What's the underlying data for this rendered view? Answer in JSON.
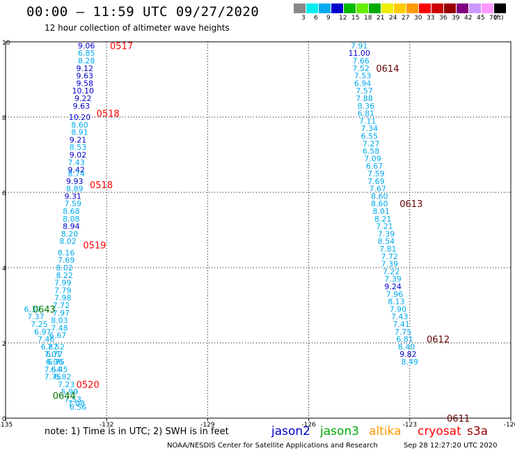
{
  "title": "00:00 – 11:59 UTC 09/27/2020",
  "subtitle": "12 hour collection of altimeter wave heights",
  "legend": {
    "unit": "(ft)",
    "colors": [
      "#888888",
      "#00eeee",
      "#00aaee",
      "#0000cc",
      "#00bb00",
      "#66ee00",
      "#00aa00",
      "#eeee00",
      "#ffcc00",
      "#ff9900",
      "#ff0000",
      "#cc0000",
      "#990000",
      "#800080",
      "#cc99ff",
      "#ff99ff",
      "#000000"
    ],
    "labels": [
      "3",
      "6",
      "9",
      "12",
      "15",
      "18",
      "21",
      "24",
      "27",
      "30",
      "33",
      "36",
      "39",
      "42",
      "45",
      "70"
    ]
  },
  "map": {
    "x_ticks": [
      "-135",
      "-132",
      "-129",
      "-126",
      "-123",
      "-120"
    ],
    "y_ticks": [
      "0",
      "2",
      "4",
      "6",
      "8",
      "10"
    ],
    "grid": "dotted",
    "pass_labels": [
      {
        "text": "0517",
        "color": "#ff0000",
        "lon": -131.9,
        "lat": 9.9
      },
      {
        "text": "0518",
        "color": "#ff0000",
        "lon": -132.3,
        "lat": 8.1
      },
      {
        "text": "0518",
        "color": "#ff0000",
        "lon": -132.5,
        "lat": 6.2
      },
      {
        "text": "0519",
        "color": "#ff0000",
        "lon": -132.7,
        "lat": 4.6
      },
      {
        "text": "0643",
        "color": "#007700",
        "lon": -134.2,
        "lat": 2.9
      },
      {
        "text": "0520",
        "color": "#ff0000",
        "lon": -132.9,
        "lat": 0.9
      },
      {
        "text": "0644",
        "color": "#007700",
        "lon": -133.6,
        "lat": 0.6
      },
      {
        "text": "0614",
        "color": "#660000",
        "lon": -124.0,
        "lat": 9.3
      },
      {
        "text": "0613",
        "color": "#660000",
        "lon": -123.3,
        "lat": 5.7
      },
      {
        "text": "0612",
        "color": "#660000",
        "lon": -122.5,
        "lat": 2.1
      },
      {
        "text": "0611",
        "color": "#660000",
        "lon": -121.9,
        "lat": 0.0
      }
    ],
    "tracks": [
      {
        "satellite": "jason3",
        "points": [
          {
            "lon": -134.2,
            "lat": 2.9,
            "v": "6.37",
            "c": "#00aaee"
          },
          {
            "lon": -134.1,
            "lat": 2.7,
            "v": "7.37",
            "c": "#00aaee"
          },
          {
            "lon": -134.0,
            "lat": 2.5,
            "v": "7.25",
            "c": "#00aaee"
          },
          {
            "lon": -133.9,
            "lat": 2.3,
            "v": "6.97",
            "c": "#00aaee"
          },
          {
            "lon": -133.8,
            "lat": 2.1,
            "v": "7.46",
            "c": "#00aaee"
          },
          {
            "lon": -133.7,
            "lat": 1.9,
            "v": "6.87",
            "c": "#00aaee"
          },
          {
            "lon": -133.6,
            "lat": 1.7,
            "v": "7.01",
            "c": "#00aaee"
          },
          {
            "lon": -133.5,
            "lat": 1.5,
            "v": "6.75",
            "c": "#00aaee"
          },
          {
            "lon": -133.4,
            "lat": 1.3,
            "v": "6.45",
            "c": "#00aaee"
          },
          {
            "lon": -133.3,
            "lat": 1.1,
            "v": "6.82",
            "c": "#00aaee"
          },
          {
            "lon": -133.2,
            "lat": 0.9,
            "v": "7.23",
            "c": "#00aaee"
          },
          {
            "lon": -133.1,
            "lat": 0.7,
            "v": "5.99",
            "c": "#00aaee"
          },
          {
            "lon": -133.0,
            "lat": 0.5,
            "v": "7.53",
            "c": "#00aaee"
          },
          {
            "lon": -132.9,
            "lat": 0.4,
            "v": "7.08",
            "c": "#00aaee"
          },
          {
            "lon": -132.85,
            "lat": 0.3,
            "v": "6.56",
            "c": "#00aaee"
          }
        ]
      },
      {
        "satellite": "cryosat",
        "points": [
          {
            "lon": -132.6,
            "lat": 9.9,
            "v": "9.06",
            "c": "#0000cc"
          },
          {
            "lon": -132.6,
            "lat": 9.7,
            "v": "6.85",
            "c": "#00aaee"
          },
          {
            "lon": -132.6,
            "lat": 9.5,
            "v": "8.28",
            "c": "#00aaee"
          },
          {
            "lon": -132.65,
            "lat": 9.3,
            "v": "9.12",
            "c": "#0000cc"
          },
          {
            "lon": -132.65,
            "lat": 9.1,
            "v": "9.63",
            "c": "#0000cc"
          },
          {
            "lon": -132.65,
            "lat": 8.9,
            "v": "9.58",
            "c": "#0000cc"
          },
          {
            "lon": -132.7,
            "lat": 8.7,
            "v": "10.10",
            "c": "#0000cc"
          },
          {
            "lon": -132.7,
            "lat": 8.5,
            "v": "9.22",
            "c": "#0000cc"
          },
          {
            "lon": -132.75,
            "lat": 8.3,
            "v": "9.63",
            "c": "#0000cc"
          },
          {
            "lon": -132.8,
            "lat": 8.0,
            "v": "10.20",
            "c": "#0000cc"
          },
          {
            "lon": -132.8,
            "lat": 7.8,
            "v": "8.60",
            "c": "#00aaee"
          },
          {
            "lon": -132.8,
            "lat": 7.6,
            "v": "8.91",
            "c": "#00aaee"
          },
          {
            "lon": -132.85,
            "lat": 7.4,
            "v": "9.21",
            "c": "#0000cc"
          },
          {
            "lon": -132.85,
            "lat": 7.2,
            "v": "8.53",
            "c": "#00aaee"
          },
          {
            "lon": -132.85,
            "lat": 7.0,
            "v": "9.02",
            "c": "#0000cc"
          },
          {
            "lon": -132.9,
            "lat": 6.8,
            "v": "7.43",
            "c": "#00aaee"
          },
          {
            "lon": -132.9,
            "lat": 6.6,
            "v": "9.42",
            "c": "#0000cc"
          },
          {
            "lon": -132.9,
            "lat": 6.5,
            "v": "8.74",
            "c": "#00aaee"
          },
          {
            "lon": -132.95,
            "lat": 6.3,
            "v": "9.93",
            "c": "#0000cc"
          },
          {
            "lon": -132.95,
            "lat": 6.1,
            "v": "8.89",
            "c": "#00aaee"
          },
          {
            "lon": -133.0,
            "lat": 5.9,
            "v": "9.31",
            "c": "#0000cc"
          },
          {
            "lon": -133.0,
            "lat": 5.7,
            "v": "7.59",
            "c": "#00aaee"
          },
          {
            "lon": -133.05,
            "lat": 5.5,
            "v": "8.68",
            "c": "#00aaee"
          },
          {
            "lon": -133.05,
            "lat": 5.3,
            "v": "8.08",
            "c": "#00aaee"
          },
          {
            "lon": -133.05,
            "lat": 5.1,
            "v": "8.94",
            "c": "#0000cc"
          },
          {
            "lon": -133.1,
            "lat": 4.9,
            "v": "8.20",
            "c": "#00aaee"
          },
          {
            "lon": -133.15,
            "lat": 4.7,
            "v": "8.02",
            "c": "#00aaee"
          },
          {
            "lon": -133.2,
            "lat": 4.4,
            "v": "8.16",
            "c": "#00aaee"
          },
          {
            "lon": -133.2,
            "lat": 4.2,
            "v": "7.69",
            "c": "#00aaee"
          },
          {
            "lon": -133.25,
            "lat": 4.0,
            "v": "8.02",
            "c": "#00aaee"
          },
          {
            "lon": -133.25,
            "lat": 3.8,
            "v": "8.22",
            "c": "#00aaee"
          },
          {
            "lon": -133.3,
            "lat": 3.6,
            "v": "7.99",
            "c": "#00aaee"
          },
          {
            "lon": -133.3,
            "lat": 3.4,
            "v": "7.79",
            "c": "#00aaee"
          },
          {
            "lon": -133.3,
            "lat": 3.2,
            "v": "7.98",
            "c": "#00aaee"
          },
          {
            "lon": -133.35,
            "lat": 3.0,
            "v": "7.72",
            "c": "#00aaee"
          },
          {
            "lon": -133.35,
            "lat": 2.8,
            "v": "7.97",
            "c": "#00aaee"
          },
          {
            "lon": -133.4,
            "lat": 2.6,
            "v": "8.03",
            "c": "#00aaee"
          },
          {
            "lon": -133.4,
            "lat": 2.4,
            "v": "7.48",
            "c": "#00aaee"
          },
          {
            "lon": -133.45,
            "lat": 2.2,
            "v": "6.67",
            "c": "#00aaee"
          },
          {
            "lon": -133.5,
            "lat": 1.9,
            "v": "7.52",
            "c": "#00aaee"
          },
          {
            "lon": -133.55,
            "lat": 1.7,
            "v": "6.77",
            "c": "#00aaee"
          },
          {
            "lon": -133.55,
            "lat": 1.5,
            "v": "6.96",
            "c": "#00aaee"
          },
          {
            "lon": -133.6,
            "lat": 1.3,
            "v": "7.54",
            "c": "#00aaee"
          },
          {
            "lon": -133.6,
            "lat": 1.1,
            "v": "7.75",
            "c": "#00aaee"
          }
        ]
      },
      {
        "satellite": "s3a",
        "points": [
          {
            "lon": -124.5,
            "lat": 9.9,
            "v": "7.91",
            "c": "#00aaee"
          },
          {
            "lon": -124.5,
            "lat": 9.7,
            "v": "11.00",
            "c": "#0000cc"
          },
          {
            "lon": -124.45,
            "lat": 9.5,
            "v": "7.66",
            "c": "#00aaee"
          },
          {
            "lon": -124.45,
            "lat": 9.3,
            "v": "7.52",
            "c": "#00aaee"
          },
          {
            "lon": -124.4,
            "lat": 9.1,
            "v": "7.53",
            "c": "#00aaee"
          },
          {
            "lon": -124.4,
            "lat": 8.9,
            "v": "6.94",
            "c": "#00aaee"
          },
          {
            "lon": -124.35,
            "lat": 8.7,
            "v": "7.57",
            "c": "#00aaee"
          },
          {
            "lon": -124.35,
            "lat": 8.5,
            "v": "7.88",
            "c": "#00aaee"
          },
          {
            "lon": -124.3,
            "lat": 8.3,
            "v": "8.36",
            "c": "#00aaee"
          },
          {
            "lon": -124.3,
            "lat": 8.1,
            "v": "6.81",
            "c": "#00aaee"
          },
          {
            "lon": -124.25,
            "lat": 7.9,
            "v": "7.11",
            "c": "#00aaee"
          },
          {
            "lon": -124.2,
            "lat": 7.7,
            "v": "7.34",
            "c": "#00aaee"
          },
          {
            "lon": -124.2,
            "lat": 7.5,
            "v": "6.55",
            "c": "#00aaee"
          },
          {
            "lon": -124.15,
            "lat": 7.3,
            "v": "7.27",
            "c": "#00aaee"
          },
          {
            "lon": -124.15,
            "lat": 7.1,
            "v": "6.58",
            "c": "#00aaee"
          },
          {
            "lon": -124.1,
            "lat": 6.9,
            "v": "7.09",
            "c": "#00aaee"
          },
          {
            "lon": -124.05,
            "lat": 6.7,
            "v": "6.67",
            "c": "#00aaee"
          },
          {
            "lon": -124.0,
            "lat": 6.5,
            "v": "7.59",
            "c": "#00aaee"
          },
          {
            "lon": -124.0,
            "lat": 6.3,
            "v": "7.69",
            "c": "#00aaee"
          },
          {
            "lon": -123.95,
            "lat": 6.1,
            "v": "7.67",
            "c": "#00aaee"
          },
          {
            "lon": -123.9,
            "lat": 5.9,
            "v": "8.60",
            "c": "#00aaee"
          },
          {
            "lon": -123.9,
            "lat": 5.7,
            "v": "8.60",
            "c": "#00aaee"
          },
          {
            "lon": -123.85,
            "lat": 5.5,
            "v": "8.01",
            "c": "#00aaee"
          },
          {
            "lon": -123.8,
            "lat": 5.3,
            "v": "8.21",
            "c": "#00aaee"
          },
          {
            "lon": -123.75,
            "lat": 5.1,
            "v": "7.21",
            "c": "#00aaee"
          },
          {
            "lon": -123.7,
            "lat": 4.9,
            "v": "7.39",
            "c": "#00aaee"
          },
          {
            "lon": -123.7,
            "lat": 4.7,
            "v": "8.54",
            "c": "#00aaee"
          },
          {
            "lon": -123.65,
            "lat": 4.5,
            "v": "7.81",
            "c": "#00aaee"
          },
          {
            "lon": -123.6,
            "lat": 4.3,
            "v": "7.72",
            "c": "#00aaee"
          },
          {
            "lon": -123.6,
            "lat": 4.1,
            "v": "7.39",
            "c": "#00aaee"
          },
          {
            "lon": -123.55,
            "lat": 3.9,
            "v": "7.22",
            "c": "#00aaee"
          },
          {
            "lon": -123.5,
            "lat": 3.7,
            "v": "7.39",
            "c": "#00aaee"
          },
          {
            "lon": -123.5,
            "lat": 3.5,
            "v": "9.24",
            "c": "#0000cc"
          },
          {
            "lon": -123.45,
            "lat": 3.3,
            "v": "7.96",
            "c": "#00aaee"
          },
          {
            "lon": -123.4,
            "lat": 3.1,
            "v": "8.13",
            "c": "#00aaee"
          },
          {
            "lon": -123.35,
            "lat": 2.9,
            "v": "7.90",
            "c": "#00aaee"
          },
          {
            "lon": -123.3,
            "lat": 2.7,
            "v": "7.43",
            "c": "#00aaee"
          },
          {
            "lon": -123.25,
            "lat": 2.5,
            "v": "7.41",
            "c": "#00aaee"
          },
          {
            "lon": -123.2,
            "lat": 2.3,
            "v": "7.75",
            "c": "#00aaee"
          },
          {
            "lon": -123.15,
            "lat": 2.1,
            "v": "6.81",
            "c": "#00aaee"
          },
          {
            "lon": -123.1,
            "lat": 1.9,
            "v": "8.40",
            "c": "#00aaee"
          },
          {
            "lon": -123.05,
            "lat": 1.7,
            "v": "9.82",
            "c": "#0000cc"
          },
          {
            "lon": -123.0,
            "lat": 1.5,
            "v": "8.49",
            "c": "#00aaee"
          }
        ]
      }
    ]
  },
  "footnote": "note: 1) Time is in UTC; 2) SWH is in feet",
  "satellites": [
    {
      "name": "jason2",
      "color": "#0000cc"
    },
    {
      "name": "jason3",
      "color": "#00aa00"
    },
    {
      "name": "altika",
      "color": "#ff9900"
    },
    {
      "name": "cryosat",
      "color": "#ff0000"
    },
    {
      "name": "s3a",
      "color": "#990000"
    }
  ],
  "credit": "NOAA/NESDIS Center for Satellite Applications and Research",
  "timestamp": "Sep 28 12:27:20 UTC 2020"
}
